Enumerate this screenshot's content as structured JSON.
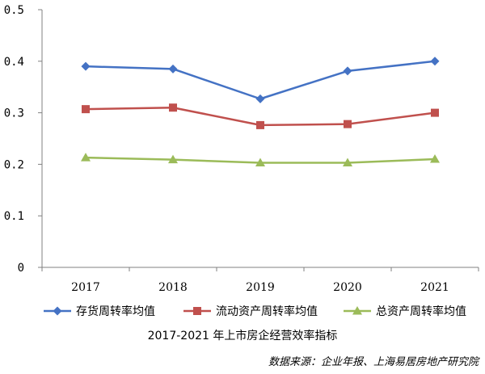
{
  "chart_data": {
    "type": "line",
    "title": "2017-2021 年上市房企经营效率指标",
    "source": "数据来源：企业年报、上海易居房地产研究院",
    "categories": [
      "2017",
      "2018",
      "2019",
      "2020",
      "2021"
    ],
    "ylim": [
      0,
      0.5
    ],
    "yticks": [
      "0",
      "0.1",
      "0.2",
      "0.3",
      "0.4",
      "0.5"
    ],
    "grid": false,
    "legend_position": "bottom",
    "series": [
      {
        "name": "存货周转率均值",
        "color": "#4472C4",
        "marker": "diamond",
        "values": [
          0.39,
          0.385,
          0.327,
          0.381,
          0.4
        ]
      },
      {
        "name": "流动资产周转率均值",
        "color": "#C0504D",
        "marker": "square",
        "values": [
          0.307,
          0.31,
          0.276,
          0.278,
          0.3
        ]
      },
      {
        "name": "总资产周转率均值",
        "color": "#9BBB59",
        "marker": "triangle",
        "values": [
          0.213,
          0.209,
          0.203,
          0.203,
          0.21
        ]
      }
    ]
  }
}
